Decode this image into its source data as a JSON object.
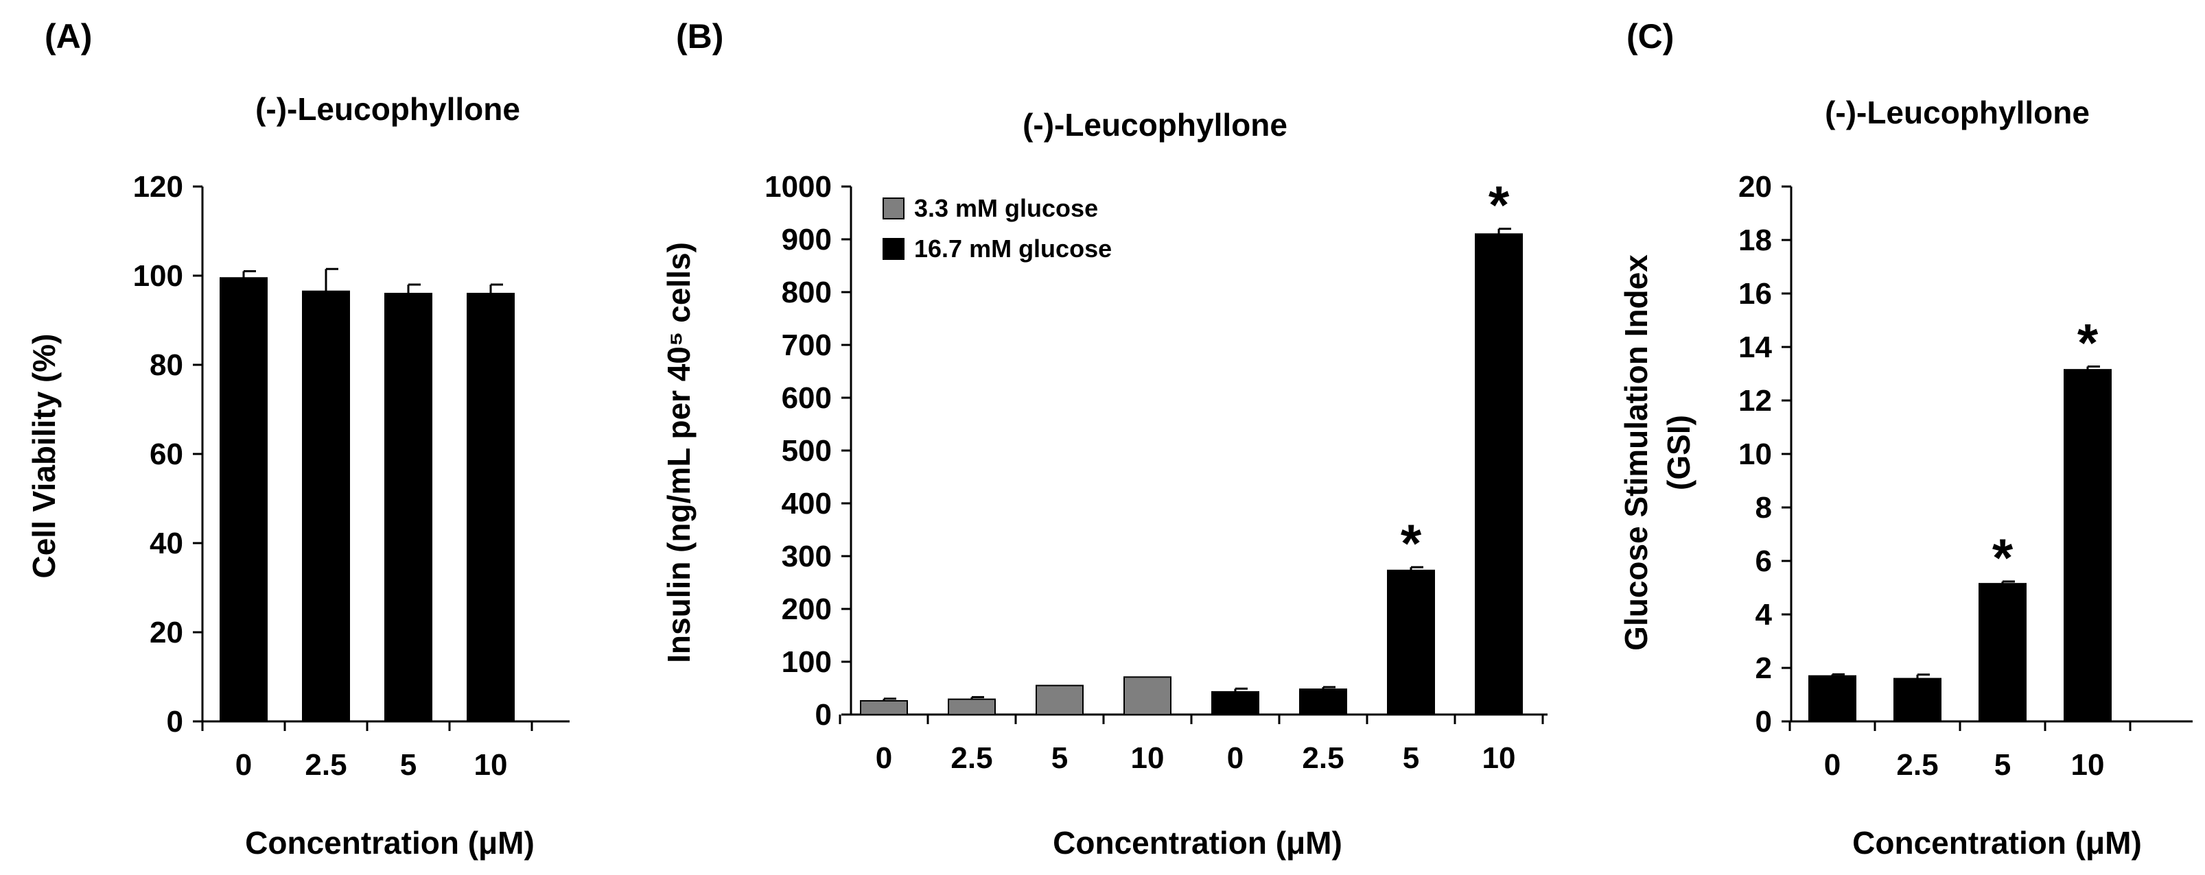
{
  "chart_data": [
    {
      "panel": "(A)",
      "type": "bar",
      "title": "(-)-Leucophyllone",
      "xlabel": "Concentration (μM)",
      "ylabel": "Cell Viability (%)",
      "ylim": [
        0,
        120
      ],
      "yticks": [
        0,
        20,
        40,
        60,
        80,
        100,
        120
      ],
      "categories": [
        "0",
        "2.5",
        "5",
        "10"
      ],
      "series": [
        {
          "name": "Cell viability",
          "color": "#000000",
          "values": [
            99.5,
            96.5,
            96,
            96
          ],
          "errors": [
            1.5,
            5,
            2,
            2
          ]
        }
      ],
      "significance": []
    },
    {
      "panel": "(B)",
      "type": "bar",
      "title": "(-)-Leucophyllone",
      "xlabel": "Concentration (μM)",
      "ylabel": "Insulin (ng/mL per 40⁵ cells)",
      "ylim": [
        0,
        1000
      ],
      "yticks": [
        0,
        100,
        200,
        300,
        400,
        500,
        600,
        700,
        800,
        900,
        1000
      ],
      "categories": [
        "0",
        "2.5",
        "5",
        "10",
        "0",
        "2.5",
        "5",
        "10"
      ],
      "legend_position": "top-left",
      "series": [
        {
          "name": "3.3 mM glucose",
          "color": "#7f7f7f",
          "values": [
            26,
            29,
            55,
            71,
            null,
            null,
            null,
            null
          ],
          "errors": [
            4,
            4,
            0,
            0,
            null,
            null,
            null,
            null
          ]
        },
        {
          "name": "16.7 mM glucose",
          "color": "#000000",
          "values": [
            null,
            null,
            null,
            null,
            43,
            48,
            273,
            910
          ],
          "errors": [
            null,
            null,
            null,
            null,
            6,
            4,
            6,
            10
          ]
        }
      ],
      "significance": [
        6,
        7
      ],
      "significance_symbol": "*"
    },
    {
      "panel": "(C)",
      "type": "bar",
      "title": "(-)-Leucophyllone",
      "xlabel": "Concentration (μM)",
      "ylabel": "Glucose Stimulation Index (GSI)",
      "ylabel_lines": [
        "Glucose Stimulation Index",
        "(GSI)"
      ],
      "ylim": [
        0,
        20
      ],
      "yticks": [
        0,
        2,
        4,
        6,
        8,
        10,
        12,
        14,
        16,
        18,
        20
      ],
      "categories": [
        "0",
        "2.5",
        "5",
        "10"
      ],
      "series": [
        {
          "name": "GSI",
          "color": "#000000",
          "values": [
            1.7,
            1.6,
            5.15,
            13.15
          ],
          "errors": [
            0.06,
            0.15,
            0.08,
            0.12
          ]
        }
      ],
      "significance": [
        2,
        3
      ],
      "significance_symbol": "*"
    }
  ]
}
